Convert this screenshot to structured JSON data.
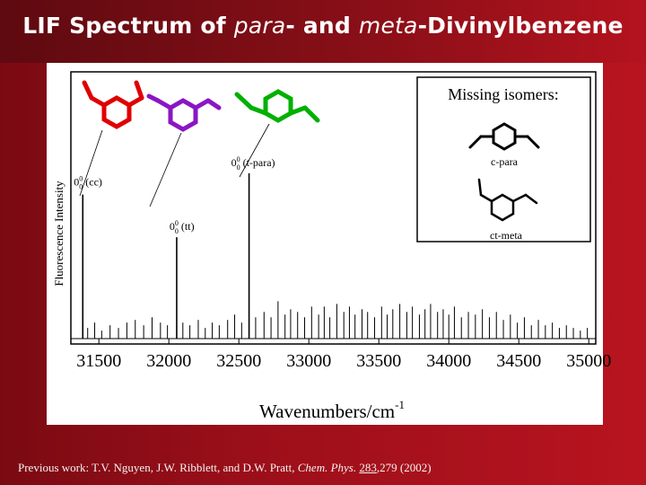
{
  "slide": {
    "title_prefix": "LIF Spectrum of ",
    "title_para": "para",
    "title_mid": "- and ",
    "title_meta": "meta",
    "title_suffix": "-Divinylbenzene"
  },
  "footer": {
    "prefix": "Previous work:  T.V. Nguyen, J.W. Ribblett, and D.W. Pratt, ",
    "journal": "Chem. Phys.",
    "space": " ",
    "volume": "283",
    "pages": ",279 (2002)"
  },
  "inset": {
    "title": "Missing isomers:",
    "label_c_para": "c-para",
    "label_ct_meta": "ct-meta"
  },
  "colors": {
    "cc_isomer": "#e00000",
    "tt_isomer": "#8a16c4",
    "t_para_isomer": "#00b000",
    "background": "#b2121e"
  },
  "chart_data": {
    "type": "line",
    "title": "",
    "xlabel": "Wavenumbers/cm",
    "xlabel_superscript": "-1",
    "ylabel": "Fluorescence Intensity",
    "xlim": [
      31300,
      35050
    ],
    "ylim": [
      0,
      1
    ],
    "x_ticks": [
      31500,
      32000,
      32500,
      33000,
      33500,
      34000,
      34500,
      35000
    ],
    "grid": false,
    "bands": [
      {
        "x": 31385,
        "y": 0.54,
        "label_origin": "0",
        "label_sup": "0",
        "label_sub": "0",
        "label_suffix": " (cc)",
        "color": "#e00000"
      },
      {
        "x": 32056,
        "y": 0.38,
        "label_origin": "0",
        "label_sup": "0",
        "label_sub": "0",
        "label_suffix": " (tt)",
        "color": "#8a16c4"
      },
      {
        "x": 32573,
        "y": 0.62,
        "label_origin": "0",
        "label_sup": "0",
        "label_sub": "0",
        "label_suffix": " (t-para)",
        "color": "#00b000"
      }
    ],
    "peaks": [
      [
        31385,
        0.54
      ],
      [
        31420,
        0.04
      ],
      [
        31470,
        0.06
      ],
      [
        31520,
        0.03
      ],
      [
        31580,
        0.05
      ],
      [
        31640,
        0.04
      ],
      [
        31700,
        0.06
      ],
      [
        31760,
        0.07
      ],
      [
        31820,
        0.05
      ],
      [
        31880,
        0.08
      ],
      [
        31940,
        0.06
      ],
      [
        31990,
        0.05
      ],
      [
        32056,
        0.38
      ],
      [
        32100,
        0.06
      ],
      [
        32150,
        0.05
      ],
      [
        32210,
        0.07
      ],
      [
        32260,
        0.04
      ],
      [
        32310,
        0.06
      ],
      [
        32360,
        0.05
      ],
      [
        32420,
        0.07
      ],
      [
        32470,
        0.09
      ],
      [
        32520,
        0.06
      ],
      [
        32573,
        0.62
      ],
      [
        32620,
        0.08
      ],
      [
        32680,
        0.1
      ],
      [
        32730,
        0.08
      ],
      [
        32780,
        0.14
      ],
      [
        32830,
        0.09
      ],
      [
        32870,
        0.11
      ],
      [
        32920,
        0.1
      ],
      [
        32970,
        0.08
      ],
      [
        33020,
        0.12
      ],
      [
        33070,
        0.09
      ],
      [
        33110,
        0.12
      ],
      [
        33150,
        0.08
      ],
      [
        33200,
        0.13
      ],
      [
        33250,
        0.1
      ],
      [
        33290,
        0.12
      ],
      [
        33330,
        0.09
      ],
      [
        33380,
        0.11
      ],
      [
        33420,
        0.1
      ],
      [
        33470,
        0.08
      ],
      [
        33520,
        0.12
      ],
      [
        33560,
        0.09
      ],
      [
        33600,
        0.11
      ],
      [
        33650,
        0.13
      ],
      [
        33700,
        0.1
      ],
      [
        33740,
        0.12
      ],
      [
        33790,
        0.09
      ],
      [
        33830,
        0.11
      ],
      [
        33870,
        0.13
      ],
      [
        33920,
        0.1
      ],
      [
        33960,
        0.11
      ],
      [
        34000,
        0.09
      ],
      [
        34040,
        0.12
      ],
      [
        34090,
        0.08
      ],
      [
        34140,
        0.1
      ],
      [
        34190,
        0.09
      ],
      [
        34240,
        0.11
      ],
      [
        34290,
        0.08
      ],
      [
        34340,
        0.1
      ],
      [
        34390,
        0.07
      ],
      [
        34440,
        0.09
      ],
      [
        34490,
        0.06
      ],
      [
        34540,
        0.08
      ],
      [
        34590,
        0.05
      ],
      [
        34640,
        0.07
      ],
      [
        34690,
        0.05
      ],
      [
        34740,
        0.06
      ],
      [
        34790,
        0.04
      ],
      [
        34840,
        0.05
      ],
      [
        34890,
        0.04
      ],
      [
        34940,
        0.03
      ],
      [
        34990,
        0.04
      ]
    ]
  }
}
